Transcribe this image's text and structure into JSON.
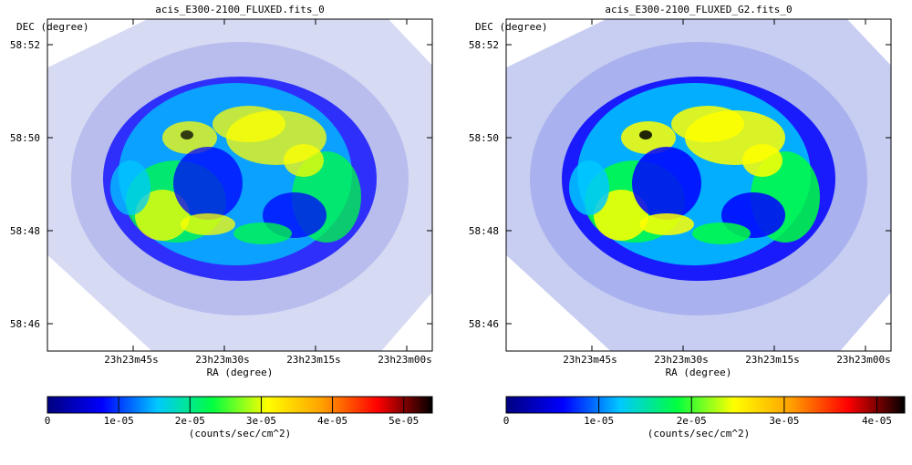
{
  "chart_data": [
    {
      "type": "heatmap",
      "title": "acis_E300-2100_FLUXED.fits_0",
      "ylabel": "DEC (degree)",
      "xlabel": "RA (degree)",
      "x_ticks": [
        "23h23m45s",
        "23h23m30s",
        "23h23m15s",
        "23h23m00s"
      ],
      "y_ticks": [
        "58:52",
        "58:50",
        "58:48",
        "58:46"
      ],
      "colorbar": {
        "label": "(counts/sec/cm^2)",
        "min": 0,
        "max": 5.4e-05,
        "ticks": [
          "0",
          "1e-05",
          "2e-05",
          "3e-05",
          "4e-05",
          "5e-05"
        ],
        "tick_values": [
          0,
          1e-05,
          2e-05,
          3e-05,
          4e-05,
          5e-05
        ],
        "colormap": [
          "#000080",
          "#0000ff",
          "#00c8ff",
          "#00ff40",
          "#ffff00",
          "#ffa000",
          "#ff0000",
          "#000000"
        ]
      },
      "smoothed": false
    },
    {
      "type": "heatmap",
      "title": "acis_E300-2100_FLUXED_G2.fits_0",
      "ylabel": "DEC (degree)",
      "xlabel": "RA (degree)",
      "x_ticks": [
        "23h23m45s",
        "23h23m30s",
        "23h23m15s",
        "23h23m00s"
      ],
      "y_ticks": [
        "58:52",
        "58:50",
        "58:48",
        "58:46"
      ],
      "colorbar": {
        "label": "(counts/sec/cm^2)",
        "min": 0,
        "max": 4.3e-05,
        "ticks": [
          "0",
          "1e-05",
          "2e-05",
          "3e-05",
          "4e-05"
        ],
        "tick_values": [
          0,
          1e-05,
          2e-05,
          3e-05,
          4e-05
        ],
        "colormap": [
          "#000080",
          "#0000ff",
          "#00c8ff",
          "#00ff40",
          "#ffff00",
          "#ffa000",
          "#ff0000",
          "#000000"
        ]
      },
      "smoothed": true
    }
  ]
}
